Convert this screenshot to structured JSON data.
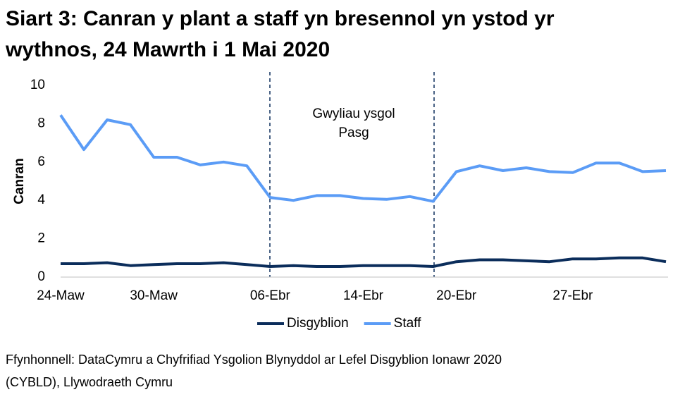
{
  "chart_data": {
    "type": "line",
    "title": [
      "Siart 3: Canran y plant a staff yn bresennol yn ystod yr",
      "wythnos, 24 Mawrth i 1 Mai 2020"
    ],
    "y_label": "Canran",
    "categories": [
      "24-Maw",
      null,
      null,
      null,
      "30-Maw",
      null,
      null,
      null,
      null,
      "06-Ebr",
      null,
      null,
      null,
      "14-Ebr",
      null,
      null,
      null,
      "20-Ebr",
      null,
      null,
      null,
      null,
      "27-Ebr",
      null,
      null,
      null,
      null
    ],
    "series": [
      {
        "name": "Disgyblion",
        "color": "#0b2d5b",
        "values": [
          0.7,
          0.7,
          0.75,
          0.6,
          0.65,
          0.7,
          0.7,
          0.75,
          0.65,
          0.55,
          0.6,
          0.55,
          0.55,
          0.6,
          0.6,
          0.6,
          0.55,
          0.8,
          0.9,
          0.9,
          0.85,
          0.8,
          0.95,
          0.95,
          1.0,
          1.0,
          0.8
        ]
      },
      {
        "name": "Staff",
        "color": "#5b9cf6",
        "values": [
          8.45,
          6.65,
          8.2,
          7.95,
          6.25,
          6.25,
          5.85,
          6.0,
          5.8,
          4.15,
          4.0,
          4.25,
          4.25,
          4.1,
          4.05,
          4.2,
          3.95,
          5.5,
          5.8,
          5.55,
          5.7,
          5.5,
          5.45,
          5.95,
          5.95,
          5.5,
          5.55
        ]
      }
    ],
    "ylim": [
      0,
      10
    ],
    "yticks": [
      0,
      2,
      4,
      6,
      8,
      10
    ],
    "grid": false,
    "annotation": [
      "Gwyliau ysgol",
      "Pasg"
    ],
    "source": [
      "Ffynhonnell: DataCymru a Chyfrifiad Ysgolion Blynyddol ar Lefel Disgyblion Ionawr 2020",
      "(CYBLD), Llywodraeth Cymru"
    ]
  }
}
